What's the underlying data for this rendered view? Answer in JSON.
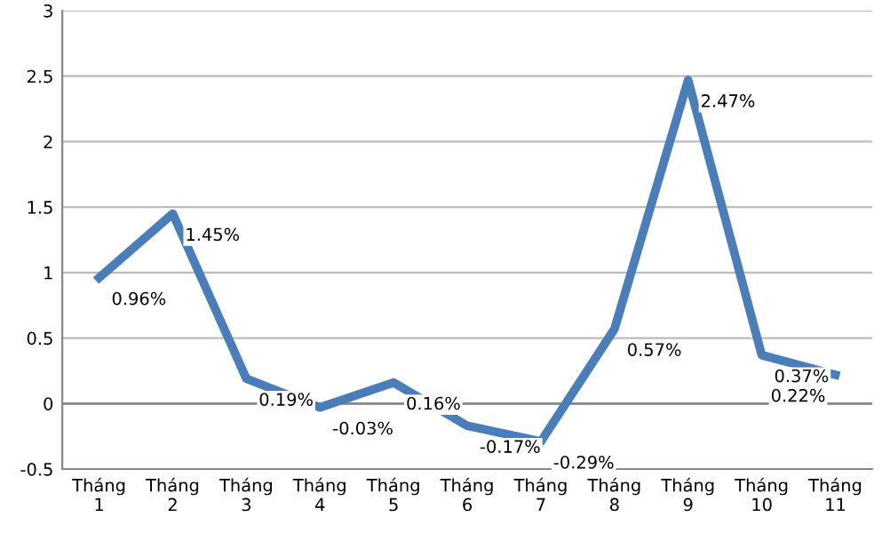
{
  "chart_data": {
    "type": "line",
    "categories": [
      "Tháng\n1",
      "Tháng\n2",
      "Tháng\n3",
      "Tháng\n4",
      "Tháng\n5",
      "Tháng\n6",
      "Tháng\n7",
      "Tháng\n8",
      "Tháng\n9",
      "Tháng\n10",
      "Tháng\n11"
    ],
    "series": [
      {
        "color": "#4a7ebb",
        "values": [
          0.96,
          1.45,
          0.19,
          -0.03,
          0.16,
          -0.17,
          -0.29,
          0.57,
          2.47,
          0.37,
          0.22
        ],
        "value_labels": [
          "0.96%",
          "1.45%",
          "0.19%",
          "-0.03%",
          "0.16%",
          "-0.17%",
          "-0.29%",
          "0.57%",
          "2.47%",
          "0.37%",
          "0.22%"
        ]
      }
    ],
    "ylim": [
      -0.5,
      3
    ],
    "yticks": [
      -0.5,
      0,
      0.5,
      1,
      1.5,
      2,
      2.5,
      3
    ],
    "grid": "y",
    "marker": "none",
    "line_style": "solid"
  }
}
